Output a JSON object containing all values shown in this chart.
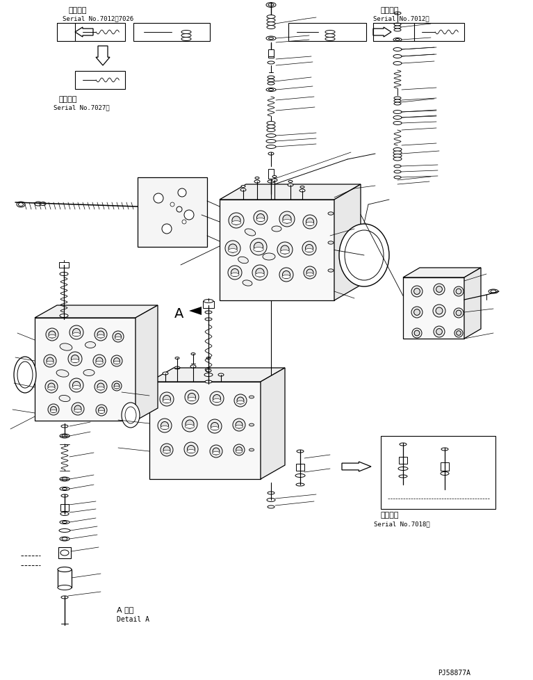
{
  "fig_width": 7.67,
  "fig_height": 9.79,
  "dpi": 100,
  "bg_color": "#ffffff",
  "line_color": "#000000",
  "part_number": "PJ58877A",
  "labels": {
    "top_left_title": "適用号機",
    "top_left_serial": "Serial No.7012～7026",
    "top_left2_title": "適用号機",
    "top_left2_serial": "Serial No.7027～",
    "top_right_title": "適用号機",
    "top_right_serial": "Serial No.7012～",
    "bottom_right_title": "適用号機",
    "bottom_right_serial": "Serial No.7018～",
    "detail_a_jp": "A 詳細",
    "detail_a_en": "Detail A",
    "label_a": "A"
  }
}
